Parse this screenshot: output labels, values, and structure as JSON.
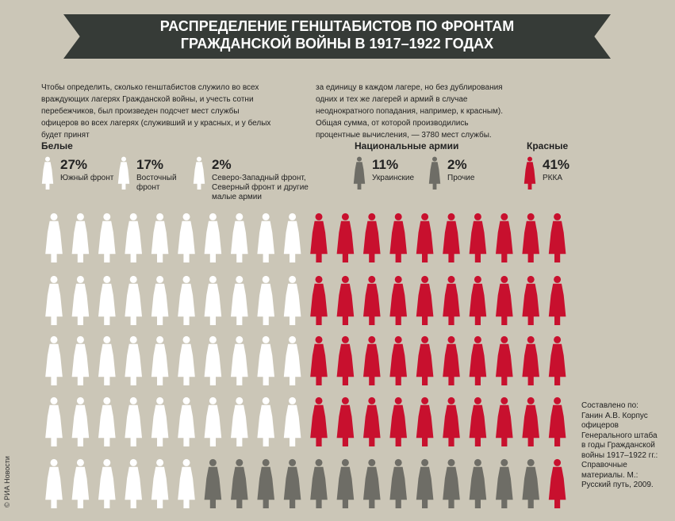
{
  "chart_data": {
    "type": "pictogram",
    "title": [
      "РАСПРЕДЕЛЕНИЕ ГЕНШТАБИСТОВ ПО ФРОНТАМ",
      "ГРАЖДАНСКОЙ ВОЙНЫ В 1917–1922 ГОДАХ"
    ],
    "description": [
      "Чтобы определить, сколько генштабистов служило во всех враждующих лагерях Гражданской войны, и учесть сотни перебежчиков, был произведен подсчет мест службы офицеров во всех лагерях (служивший и у красных, и у белых будет принят",
      "за единицу в каждом лагере, но без дублирования одних и тех же лагерей и армий в случае неоднократного попадания, например, к красным). Общая сумма, от которой производились процентные вычисления, — 3780 мест службы."
    ],
    "groups": [
      {
        "name": "Белые",
        "series": [
          {
            "name": "Южный фронт",
            "color": "#ffffff",
            "values": [
              27
            ],
            "value_labels": [
              "27%"
            ]
          },
          {
            "name": "Восточный фронт",
            "color": "#ffffff",
            "values": [
              17
            ],
            "value_labels": [
              "17%"
            ]
          },
          {
            "name": "Северо-Западный фронт, Северный фронт и другие малые армии",
            "color": "#ffffff",
            "values": [
              2
            ],
            "value_labels": [
              "2%"
            ]
          }
        ]
      },
      {
        "name": "Национальные армии",
        "series": [
          {
            "name": "Украинские",
            "color": "#6e6d66",
            "values": [
              11
            ],
            "value_labels": [
              "11%"
            ]
          },
          {
            "name": "Прочие",
            "color": "#6e6d66",
            "values": [
              2
            ],
            "value_labels": [
              "2%"
            ]
          }
        ]
      },
      {
        "name": "Красные",
        "series": [
          {
            "name": "РККА",
            "color": "#c8102e",
            "values": [
              41
            ],
            "value_labels": [
              "41%"
            ]
          }
        ]
      }
    ],
    "source": "Составлено по: Ганин А.В. Корпус офицеров Генерального штаба в годы Гражданской войны 1917–1922 гг.: Справочные материалы. М.: Русский путь, 2009.",
    "credit": "© РИА Новости"
  }
}
